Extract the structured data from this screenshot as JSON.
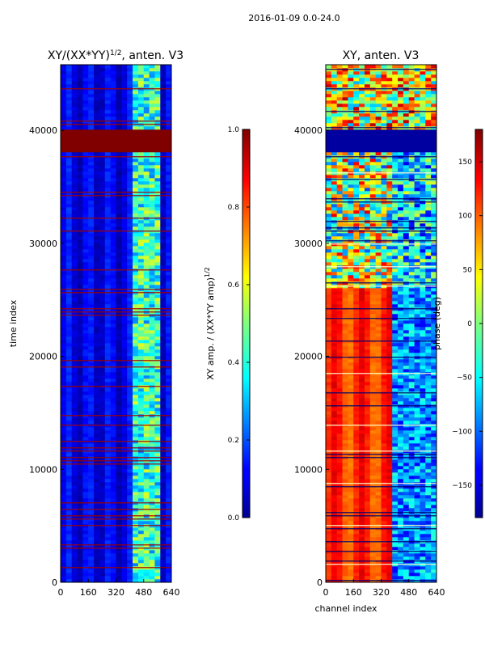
{
  "figure": {
    "suptitle": "2016-01-09 0.0-24.0"
  },
  "chart_data": [
    {
      "type": "heatmap",
      "title_base": "XY/(XX*YY)",
      "title_exp": "1/2",
      "title_tail": ", anten. V3",
      "xlabel": "",
      "ylabel": "time index",
      "x_ticks": [
        0,
        160,
        320,
        480,
        640
      ],
      "y_ticks": [
        0,
        10000,
        20000,
        30000,
        40000
      ],
      "xlim": [
        0,
        640
      ],
      "ylim": [
        0,
        45800
      ],
      "colorbar": {
        "label_base": "XY amp. / (XX*YY amp)",
        "label_exp": "1/2",
        "ticks": [
          "0.0",
          "0.2",
          "0.4",
          "0.6",
          "0.8",
          "1.0"
        ],
        "range": [
          0,
          1
        ]
      }
    },
    {
      "type": "heatmap",
      "title": "XY, anten. V3",
      "xlabel": "channel index",
      "ylabel": "",
      "x_ticks": [
        0,
        160,
        320,
        480,
        640
      ],
      "y_ticks": [
        0,
        10000,
        20000,
        30000,
        40000
      ],
      "xlim": [
        0,
        640
      ],
      "ylim": [
        0,
        45800
      ],
      "colorbar": {
        "label": "phase (deg)",
        "ticks": [
          "−150",
          "−100",
          "−50",
          "0",
          "50",
          "100",
          "150"
        ],
        "range": [
          -180,
          180
        ]
      }
    }
  ]
}
